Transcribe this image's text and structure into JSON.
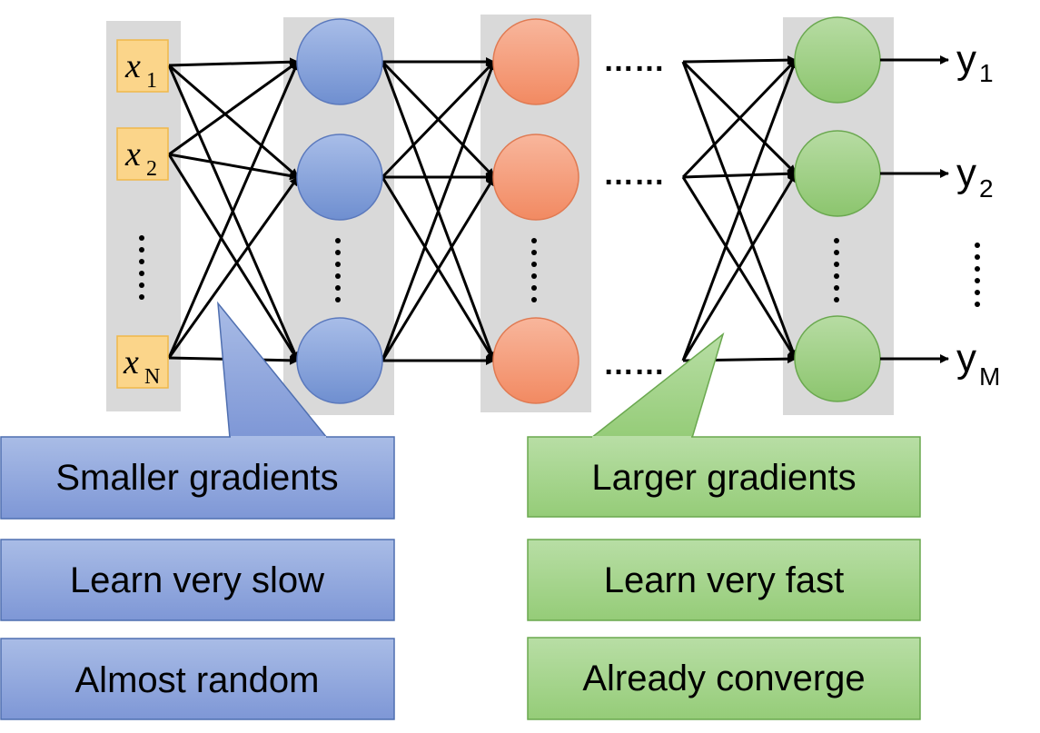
{
  "inputs": [
    {
      "base": "x",
      "sub": "1"
    },
    {
      "base": "x",
      "sub": "2"
    },
    {
      "base": "x",
      "sub": "N"
    }
  ],
  "outputs": [
    {
      "base": "y",
      "sub": "1"
    },
    {
      "base": "y",
      "sub": "2"
    },
    {
      "base": "y",
      "sub": "M"
    }
  ],
  "layers": [
    {
      "color_fill": "#7f9bd6",
      "color_light": "#a8bde8",
      "color_stroke": "#4f6fb0"
    },
    {
      "color_fill": "#f4926f",
      "color_light": "#f8b69c",
      "color_stroke": "#d9704a"
    },
    {
      "color_fill": "#95c97a",
      "color_light": "#b7dca3",
      "color_stroke": "#6aa84f"
    }
  ],
  "ellipsis_h": "……",
  "callout_left": {
    "color": "#8fa6dc",
    "labels": [
      "Smaller gradients",
      "Learn very slow",
      "Almost random"
    ]
  },
  "callout_right": {
    "color": "#a6d68a",
    "labels": [
      "Larger gradients",
      "Learn very fast",
      "Already converge"
    ]
  },
  "colors": {
    "column_bg": "#d9d9d9",
    "input_box": "#fbd58a",
    "input_box_border": "#f0b84a",
    "arrow": "#000000"
  }
}
